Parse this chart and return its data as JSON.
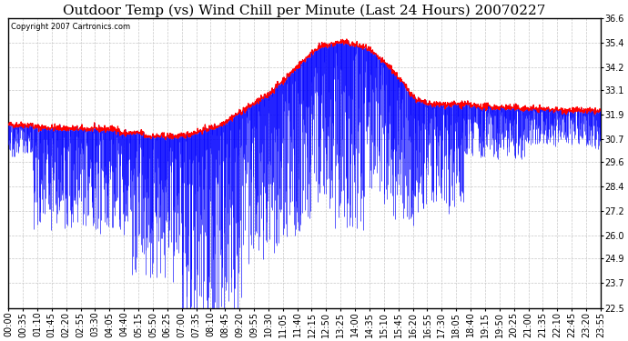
{
  "title": "Outdoor Temp (vs) Wind Chill per Minute (Last 24 Hours) 20070227",
  "copyright": "Copyright 2007 Cartronics.com",
  "yticks": [
    22.5,
    23.7,
    24.9,
    26.0,
    27.2,
    28.4,
    29.6,
    30.7,
    31.9,
    33.1,
    34.2,
    35.4,
    36.6
  ],
  "xtick_labels": [
    "00:00",
    "00:35",
    "01:10",
    "01:45",
    "02:20",
    "02:55",
    "03:30",
    "04:05",
    "04:40",
    "05:15",
    "05:50",
    "06:25",
    "07:00",
    "07:35",
    "08:10",
    "08:45",
    "09:20",
    "09:55",
    "10:30",
    "11:05",
    "11:40",
    "12:15",
    "12:50",
    "13:25",
    "14:00",
    "14:35",
    "15:10",
    "15:45",
    "16:20",
    "16:55",
    "17:30",
    "18:05",
    "18:40",
    "19:15",
    "19:50",
    "20:25",
    "21:00",
    "21:35",
    "22:10",
    "22:45",
    "23:20",
    "23:55"
  ],
  "background_color": "#ffffff",
  "grid_color": "#c8c8c8",
  "bar_color": "#0000ff",
  "line_color": "#ff0000",
  "title_fontsize": 11,
  "copyright_fontsize": 6,
  "tick_fontsize": 7,
  "ymin": 22.5,
  "ymax": 36.6
}
